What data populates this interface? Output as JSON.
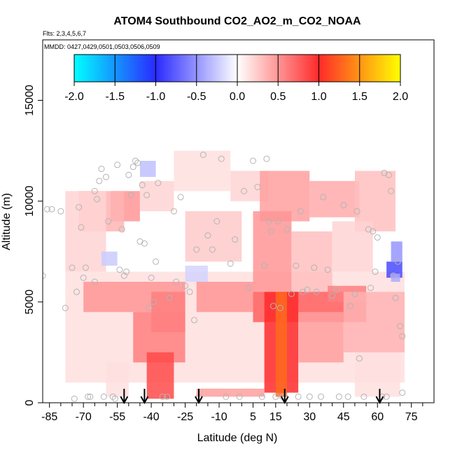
{
  "chart_data": {
    "type": "heatmap",
    "title": "ATOM4 Southbound CO2_AO2_m_CO2_NOAA",
    "subtitle_flights": "Flts: 2,3,4,5,6,7",
    "subtitle_dates": "MMDD: 0427,0429,0501,0503,0506,0509",
    "xlabel": "Latitude (deg N)",
    "ylabel": "Altitude (m)",
    "xlim": [
      -88,
      85
    ],
    "ylim": [
      0,
      18000
    ],
    "x_ticks": [
      -85,
      -70,
      -55,
      -40,
      -25,
      -10,
      5,
      15,
      30,
      45,
      60,
      75
    ],
    "x_minor_ticks": [
      -80,
      -75,
      -65,
      -60,
      -50,
      -45,
      -35,
      -30,
      -20,
      -15,
      -5,
      0,
      10,
      20,
      25,
      35,
      40,
      50,
      55,
      65,
      70,
      80
    ],
    "y_ticks": [
      0,
      5000,
      10000,
      15000
    ],
    "colorbar": {
      "range": [
        -2.0,
        2.0
      ],
      "ticks": [
        "-2.0",
        "-1.5",
        "-1.0",
        "-0.5",
        "0.0",
        "0.5",
        "1.0",
        "1.5",
        "2.0"
      ],
      "colors": {
        "neg_max": "#00ffff",
        "neg_mid": "#2a2aff",
        "zero": "#ffffff",
        "pos_mid": "#ff2a2a",
        "pos_max": "#ffff00"
      }
    },
    "arrows_latitude": [
      -52,
      -43,
      -19,
      19,
      61
    ],
    "regions": [
      {
        "lat": [
          -78,
          72
        ],
        "alt": [
          1000,
          6500
        ],
        "value": 0.15
      },
      {
        "lat": [
          -58,
          -45
        ],
        "alt": [
          9000,
          10500
        ],
        "value": 0.5
      },
      {
        "lat": [
          -72,
          -52
        ],
        "alt": [
          8500,
          10500
        ],
        "value": 0.35
      },
      {
        "lat": [
          -78,
          -60
        ],
        "alt": [
          6500,
          10500
        ],
        "value": 0.2
      },
      {
        "lat": [
          -45,
          -30
        ],
        "alt": [
          9500,
          11000
        ],
        "value": 0.2
      },
      {
        "lat": [
          -30,
          -5
        ],
        "alt": [
          10500,
          12500
        ],
        "value": 0.15
      },
      {
        "lat": [
          -5,
          12
        ],
        "alt": [
          10000,
          11500
        ],
        "value": 0.2
      },
      {
        "lat": [
          8,
          30
        ],
        "alt": [
          9000,
          11500
        ],
        "value": 0.45
      },
      {
        "lat": [
          30,
          52
        ],
        "alt": [
          9200,
          11000
        ],
        "value": 0.4
      },
      {
        "lat": [
          50,
          68
        ],
        "alt": [
          8500,
          11500
        ],
        "value": 0.3
      },
      {
        "lat": [
          -25,
          0
        ],
        "alt": [
          7000,
          9500
        ],
        "value": 0.25
      },
      {
        "lat": [
          5,
          22
        ],
        "alt": [
          5500,
          9500
        ],
        "value": 0.5
      },
      {
        "lat": [
          22,
          40
        ],
        "alt": [
          5500,
          8500
        ],
        "value": 0.3
      },
      {
        "lat": [
          40,
          58
        ],
        "alt": [
          6500,
          9000
        ],
        "value": 0.2
      },
      {
        "lat": [
          -70,
          -25
        ],
        "alt": [
          4500,
          6000
        ],
        "value": 0.5
      },
      {
        "lat": [
          -40,
          -25
        ],
        "alt": [
          3500,
          5500
        ],
        "value": 0.6
      },
      {
        "lat": [
          -20,
          5
        ],
        "alt": [
          4500,
          6000
        ],
        "value": 0.5
      },
      {
        "lat": [
          5,
          55
        ],
        "alt": [
          4000,
          5500
        ],
        "value": 0.75
      },
      {
        "lat": [
          38,
          55
        ],
        "alt": [
          5000,
          5800
        ],
        "value": 0.6
      },
      {
        "lat": [
          -48,
          -25
        ],
        "alt": [
          2000,
          4500
        ],
        "value": 0.6
      },
      {
        "lat": [
          -42,
          -30
        ],
        "alt": [
          200,
          2500
        ],
        "value": 0.85
      },
      {
        "lat": [
          10,
          25
        ],
        "alt": [
          500,
          5500
        ],
        "value": 1.0
      },
      {
        "lat": [
          15,
          20
        ],
        "alt": [
          300,
          5500
        ],
        "value": 1.3
      },
      {
        "lat": [
          25,
          45
        ],
        "alt": [
          2000,
          4500
        ],
        "value": 0.45
      },
      {
        "lat": [
          45,
          72
        ],
        "alt": [
          2500,
          5500
        ],
        "value": 0.35
      },
      {
        "lat": [
          -20,
          10
        ],
        "alt": [
          300,
          700
        ],
        "value": 0.45
      },
      {
        "lat": [
          -60,
          -50
        ],
        "alt": [
          300,
          2000
        ],
        "value": 0.15
      },
      {
        "lat": [
          50,
          70
        ],
        "alt": [
          300,
          2500
        ],
        "value": 0.15
      },
      {
        "lat": [
          -45,
          -38
        ],
        "alt": [
          11200,
          12000
        ],
        "value": -0.3
      },
      {
        "lat": [
          -62,
          -55
        ],
        "alt": [
          6800,
          7500
        ],
        "value": -0.25
      },
      {
        "lat": [
          -25,
          -15
        ],
        "alt": [
          6000,
          6800
        ],
        "value": -0.2
      },
      {
        "lat": [
          64,
          71
        ],
        "alt": [
          6200,
          7000
        ],
        "value": -0.85
      },
      {
        "lat": [
          66,
          71
        ],
        "alt": [
          7000,
          8000
        ],
        "value": -0.5
      },
      {
        "lat": [
          66,
          70
        ],
        "alt": [
          6000,
          6400
        ],
        "value": -0.4
      }
    ],
    "points": [
      [
        -88,
        6300
      ],
      [
        -86,
        9600
      ],
      [
        -84,
        9600
      ],
      [
        -80,
        9500
      ],
      [
        -78,
        4700
      ],
      [
        -75,
        6700
      ],
      [
        -74,
        200
      ],
      [
        -73,
        5500
      ],
      [
        -72,
        9700
      ],
      [
        -71,
        8700
      ],
      [
        -70,
        6200
      ],
      [
        -69,
        6700
      ],
      [
        -68,
        300
      ],
      [
        -67,
        300
      ],
      [
        -65,
        6000
      ],
      [
        -65,
        10500
      ],
      [
        -64,
        10100
      ],
      [
        -63,
        11000
      ],
      [
        -62,
        11600
      ],
      [
        -61,
        300
      ],
      [
        -60,
        11200
      ],
      [
        -59,
        9000
      ],
      [
        -57,
        300
      ],
      [
        -56,
        200
      ],
      [
        -55,
        11800
      ],
      [
        -54,
        6600
      ],
      [
        -53,
        8600
      ],
      [
        -52,
        6300
      ],
      [
        -51,
        6500
      ],
      [
        -50,
        11300
      ],
      [
        -49,
        10300
      ],
      [
        -48,
        11700
      ],
      [
        -47,
        12000
      ],
      [
        -46,
        11900
      ],
      [
        -45,
        8000
      ],
      [
        -44,
        10800
      ],
      [
        -43,
        7900
      ],
      [
        -42,
        10300
      ],
      [
        -41,
        4700
      ],
      [
        -40,
        6200
      ],
      [
        -39,
        5000
      ],
      [
        -38,
        7000
      ],
      [
        -37,
        10900
      ],
      [
        -35,
        300
      ],
      [
        -33,
        300
      ],
      [
        -32,
        5200
      ],
      [
        -30,
        9500
      ],
      [
        -29,
        6000
      ],
      [
        -27,
        10200
      ],
      [
        -25,
        5800
      ],
      [
        -23,
        5500
      ],
      [
        -21,
        4100
      ],
      [
        -20,
        7600
      ],
      [
        -19,
        300
      ],
      [
        -17,
        12300
      ],
      [
        -15,
        8300
      ],
      [
        -13,
        7600
      ],
      [
        -11,
        9000
      ],
      [
        -9,
        12100
      ],
      [
        -7,
        300
      ],
      [
        -5,
        6900
      ],
      [
        -3,
        8100
      ],
      [
        -1,
        300
      ],
      [
        1,
        10500
      ],
      [
        3,
        5700
      ],
      [
        5,
        12000
      ],
      [
        7,
        10700
      ],
      [
        9,
        300
      ],
      [
        10,
        6800
      ],
      [
        11,
        12100
      ],
      [
        12,
        9000
      ],
      [
        13,
        8500
      ],
      [
        14,
        4800
      ],
      [
        15,
        300
      ],
      [
        16,
        9000
      ],
      [
        17,
        4700
      ],
      [
        18,
        300
      ],
      [
        19,
        300
      ],
      [
        20,
        8600
      ],
      [
        22,
        5400
      ],
      [
        24,
        6800
      ],
      [
        25,
        300
      ],
      [
        26,
        9500
      ],
      [
        27,
        5500
      ],
      [
        29,
        5600
      ],
      [
        30,
        300
      ],
      [
        32,
        6700
      ],
      [
        33,
        5500
      ],
      [
        35,
        300
      ],
      [
        36,
        10200
      ],
      [
        38,
        6600
      ],
      [
        40,
        5300
      ],
      [
        42,
        5600
      ],
      [
        43,
        300
      ],
      [
        45,
        9800
      ],
      [
        47,
        300
      ],
      [
        48,
        4800
      ],
      [
        50,
        5400
      ],
      [
        51,
        9500
      ],
      [
        52,
        2200
      ],
      [
        54,
        300
      ],
      [
        56,
        8600
      ],
      [
        57,
        5700
      ],
      [
        58,
        8500
      ],
      [
        59,
        6500
      ],
      [
        60,
        8200
      ],
      [
        62,
        300
      ],
      [
        63,
        11400
      ],
      [
        64,
        300
      ],
      [
        65,
        11300
      ],
      [
        66,
        10500
      ],
      [
        67,
        6300
      ],
      [
        68,
        5200
      ],
      [
        69,
        7000
      ],
      [
        70,
        3800
      ],
      [
        71,
        3300
      ],
      [
        71,
        500
      ]
    ]
  }
}
